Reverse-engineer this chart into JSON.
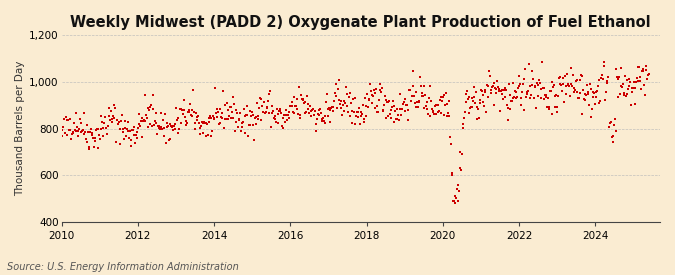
{
  "title": "Weekly Midwest (PADD 2) Oxygenate Plant Production of Fuel Ethanol",
  "ylabel": "Thousand Barrels per Day",
  "source": "Source: U.S. Energy Information Administration",
  "background_color": "#faecd2",
  "line_color": "#cc0000",
  "ylim": [
    400,
    1200
  ],
  "yticks": [
    400,
    600,
    800,
    1000,
    1200
  ],
  "ytick_labels": [
    "400",
    "600",
    "800",
    "1,000",
    "1,200"
  ],
  "xlim_start": 2010.0,
  "xlim_end": 2025.7,
  "xtick_years": [
    2010,
    2012,
    2014,
    2016,
    2018,
    2020,
    2022,
    2024
  ],
  "seed": 42,
  "title_fontsize": 10.5,
  "axis_fontsize": 7.5,
  "source_fontsize": 7,
  "marker_size": 1.8
}
